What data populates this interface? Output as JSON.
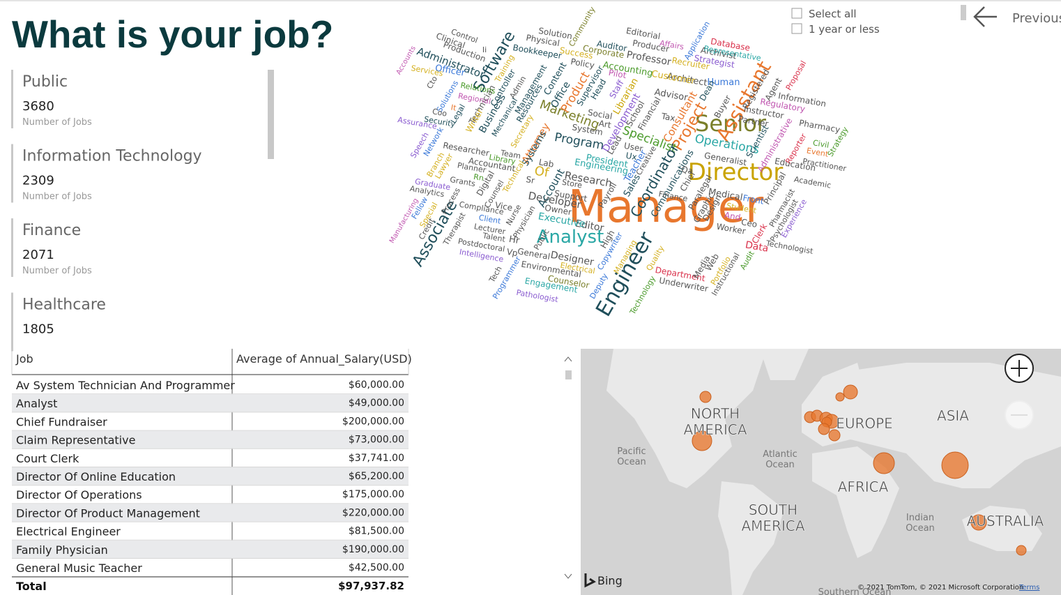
{
  "header": {
    "title": "What is your job?"
  },
  "slicer": {
    "options": [
      "Select all",
      "1 year or less"
    ]
  },
  "nav": {
    "previous": "Previous"
  },
  "cards": [
    {
      "label": "Public",
      "value": 3680,
      "caption": "Number of Jobs"
    },
    {
      "label": "Information Technology",
      "value": 2309,
      "caption": "Number of Jobs"
    },
    {
      "label": "Finance",
      "value": 2071,
      "caption": "Number of Jobs"
    },
    {
      "label": "Healthcare",
      "value": 1805
    }
  ],
  "word_cloud": {
    "words": [
      "Manager",
      "Director",
      "Senior",
      "Engineer",
      "Analyst",
      "Assistant",
      "Software",
      "Associate",
      "Marketing",
      "Project",
      "Specialist",
      "Coordinator",
      "Operations",
      "Program",
      "Consultant",
      "Developer",
      "Research",
      "Account",
      "Product",
      "Administrator",
      "Engineering",
      "Attorney",
      "Designer",
      "Editor",
      "Professor",
      "Business",
      "Communications",
      "Development",
      "Technician",
      "Architect",
      "Human",
      "Data",
      "Medical",
      "Generalist",
      "Administrative",
      "Scientist",
      "Manufacturing",
      "Pathologist",
      "Underwriter",
      "Technologist",
      "Environmental",
      "Engagement",
      "Counselor",
      "Officer",
      "Production",
      "Clinical",
      "Control",
      "Accounts",
      "Services",
      "Solutions",
      "Relations",
      "Regional",
      "Legal",
      "Security",
      "Assurance",
      "Network",
      "Speech",
      "Researcher",
      "Planner",
      "Accountant",
      "Library",
      "Team",
      "Graduate",
      "Analytics",
      "Grants",
      "Digital",
      "Counsel",
      "Compliance",
      "Client",
      "Lecturer",
      "Talent",
      "Postdoctoral",
      "Intelligence",
      "Therapist",
      "Vice",
      "Nurse",
      "Physician",
      "General",
      "Programmer",
      "Tech",
      "Executive",
      "Owner",
      "Support",
      "Store",
      "Lab",
      "Systems",
      "Secretary",
      "Resources",
      "Management",
      "Admin",
      "Mechanical",
      "Controller",
      "Training",
      "Bookkeeper",
      "Physical",
      "Solution",
      "Community",
      "Success",
      "Policy",
      "Content",
      "Office",
      "Supervisor",
      "Head",
      "Auditor",
      "Corporate",
      "Accounting",
      "Pilot",
      "Staff",
      "Librarian",
      "Social",
      "Art",
      "System",
      "Lead",
      "User",
      "Ux",
      "President",
      "Teacher",
      "Creative",
      "Sales",
      "Payroll",
      "High",
      "Copywriter",
      "Managing",
      "Technology",
      "Quality",
      "Deputy",
      "Department",
      "Media",
      "Web",
      "Portfolio",
      "Instructional",
      "Audit",
      "Clerk",
      "Worker",
      "And",
      "Ceo",
      "Front",
      "Student",
      "Design",
      "Graphic",
      "Paralegal",
      "Chief",
      "Finance",
      "Qa",
      "Financial",
      "School",
      "Tax",
      "Advisor",
      "Customer",
      "Recruiter",
      "Producer",
      "Editorial",
      "Affairs",
      "Application",
      "Archivist",
      "Strategist",
      "Database",
      "Representative",
      "Dean",
      "Buyer",
      "Instructor",
      "Partner",
      "Registered",
      "Agent",
      "Regulatory",
      "Information",
      "Proposal",
      "Pharmacy",
      "Reporter",
      "Event",
      "Civil",
      "Strategy",
      "Practitioner",
      "Education",
      "Academic",
      "Principal",
      "Pharmacist",
      "Psychologist",
      "Experience",
      "Process",
      "Credit",
      "Fellow",
      "Special",
      "Lawyer",
      "Branch",
      "Writer",
      "Coo",
      "Cto",
      "It",
      "Rn",
      "Sr",
      "Of",
      "Technical",
      "Public",
      "Hr",
      "Vp",
      "Electrical",
      "Ii"
    ]
  },
  "table": {
    "columns": [
      "Job",
      "Average of Annual_Salary(USD)"
    ],
    "rows": [
      [
        "Av System Technician And Programmer",
        "$60,000.00"
      ],
      [
        "Analyst",
        "$49,000.00"
      ],
      [
        "Chief Fundraiser",
        "$200,000.00"
      ],
      [
        "Claim Representative",
        "$73,000.00"
      ],
      [
        "Court Clerk",
        "$37,741.00"
      ],
      [
        "Director Of Online Education",
        "$65,200.00"
      ],
      [
        "Director Of Operations",
        "$175,000.00"
      ],
      [
        "Director Of Product Management",
        "$220,000.00"
      ],
      [
        "Electrical Engineer",
        "$81,500.00"
      ],
      [
        "Family Physician",
        "$190,000.00"
      ],
      [
        "General Music Teacher",
        "$42,500.00"
      ]
    ],
    "total": [
      "Total",
      "$97,937.82"
    ]
  },
  "map": {
    "labels": [
      {
        "lines": [
          "NORTH",
          "AMERICA"
        ]
      },
      {
        "lines": [
          "EUROPE"
        ]
      },
      {
        "lines": [
          "ASIA"
        ]
      },
      {
        "lines": [
          "AFRICA"
        ]
      },
      {
        "lines": [
          "SOUTH",
          "AMERICA"
        ]
      },
      {
        "lines": [
          "AUSTRALIA"
        ]
      }
    ],
    "oceans": [
      {
        "lines": [
          "Pacific",
          "Ocean"
        ]
      },
      {
        "lines": [
          "Atlantic",
          "Ocean"
        ]
      },
      {
        "lines": [
          "Indian",
          "Ocean"
        ]
      },
      {
        "lines": [
          "Southern Ocean"
        ]
      }
    ],
    "brand": "Bing",
    "attribution": "© 2021 TomTom, © 2021 Microsoft Corporation",
    "terms": "Terms"
  }
}
